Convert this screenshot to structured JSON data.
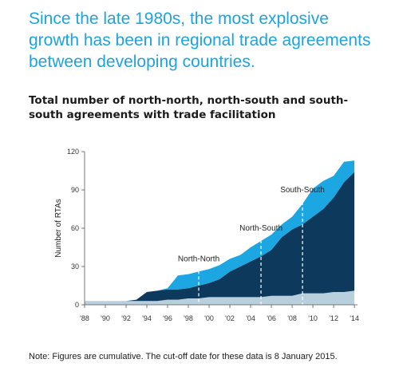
{
  "headline": "Since the late 1980s, the most explosive growth has been in regional trade agreements between developing countries.",
  "note": "Note: Figures are cumulative. The cut-off date for these data is 8 January 2015.",
  "chart_data": {
    "type": "area",
    "title": "Total number of north-north, north-south and south-south agreements with trade facilitation",
    "ylabel": "Number of RTAs",
    "xlabel": "",
    "ylim": [
      0,
      120
    ],
    "xlim": [
      1988,
      2014.3
    ],
    "stacked": true,
    "yticks": [
      0,
      30,
      60,
      90,
      120
    ],
    "xticks": [
      1988,
      1990,
      1992,
      1994,
      1996,
      1998,
      2000,
      2002,
      2004,
      2006,
      2008,
      2010,
      2012,
      2014
    ],
    "xtick_labels": [
      "'88",
      "'90",
      "'92",
      "'94",
      "'96",
      "'98",
      "'00",
      "'02",
      "'04",
      "'06",
      "'08",
      "'10",
      "'12",
      "'14"
    ],
    "x": [
      1988,
      1992,
      1993,
      1994,
      1995,
      1996,
      1997,
      1998,
      1999,
      2000,
      2001,
      2002,
      2003,
      2004,
      2005,
      2006,
      2007,
      2008,
      2009,
      2010,
      2011,
      2012,
      2013,
      2014
    ],
    "series": [
      {
        "name": "North-North",
        "color": "#b8cfde",
        "values": [
          3,
          3,
          3,
          3,
          3,
          4,
          4,
          5,
          5,
          6,
          6,
          6,
          6,
          6,
          6,
          7,
          7,
          7,
          9,
          9,
          9,
          10,
          10,
          11
        ]
      },
      {
        "name": "North-South",
        "color": "#0d3a5c",
        "values": [
          0,
          0,
          1,
          7,
          8,
          8,
          8,
          8,
          10,
          11,
          14,
          20,
          24,
          28,
          32,
          36,
          46,
          52,
          54,
          60,
          66,
          74,
          86,
          93
        ]
      },
      {
        "name": "South-South",
        "color": "#1ca7e2",
        "values": [
          0,
          0,
          0,
          0,
          0,
          1,
          11,
          11,
          11,
          11,
          11,
          10,
          9,
          11,
          12,
          12,
          10,
          10,
          16,
          22,
          22,
          17,
          16,
          9
        ]
      }
    ],
    "annotations": [
      {
        "label": "North-North",
        "x": 1999,
        "y_top": 31
      },
      {
        "label": "North-South",
        "x": 2005,
        "y_top": 55
      },
      {
        "label": "South-South",
        "x": 2009,
        "y_top": 85
      }
    ]
  }
}
